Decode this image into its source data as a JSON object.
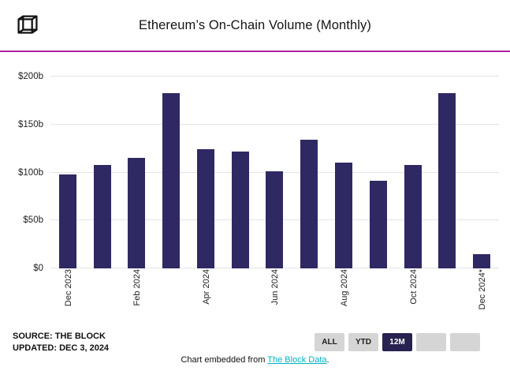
{
  "header": {
    "title": "Ethereum’s On-Chain Volume (Monthly)"
  },
  "chart_data": {
    "type": "bar",
    "title": "Ethereum’s On-Chain Volume (Monthly)",
    "categories": [
      "Dec 2023",
      "Jan 2024",
      "Feb 2024",
      "Mar 2024",
      "Apr 2024",
      "May 2024",
      "Jun 2024",
      "Jul 2024",
      "Aug 2024",
      "Sep 2024",
      "Oct 2024",
      "Nov 2024",
      "Dec 2024*"
    ],
    "values": [
      98,
      108,
      115,
      183,
      124,
      122,
      101,
      134,
      110,
      91,
      108,
      183,
      15
    ],
    "visible_x_tick_labels": [
      "Dec 2023",
      "Feb 2024",
      "Apr 2024",
      "Jun 2024",
      "Aug 2024",
      "Oct 2024",
      "Dec 2024*"
    ],
    "y_ticks": [
      {
        "value": 0,
        "label": "$0"
      },
      {
        "value": 50,
        "label": "$50b"
      },
      {
        "value": 100,
        "label": "$100b"
      },
      {
        "value": 150,
        "label": "$150b"
      },
      {
        "value": 200,
        "label": "$200b"
      }
    ],
    "ylim": [
      0,
      200
    ],
    "unit": "billions USD",
    "grid": true,
    "legend": "none"
  },
  "footer": {
    "source_line1": "SOURCE: THE BLOCK",
    "source_line2": "UPDATED: DEC 3, 2024",
    "range_buttons": [
      {
        "label": "ALL",
        "active": false
      },
      {
        "label": "YTD",
        "active": false
      },
      {
        "label": "12M",
        "active": true
      },
      {
        "label": "",
        "active": false
      },
      {
        "label": "",
        "active": false
      }
    ],
    "embed_prefix": "Chart embedded from ",
    "embed_link": "The Block Data",
    "embed_suffix": "."
  },
  "colors": {
    "bar": "#2E2962",
    "separator": "#B0209B",
    "link": "#00B3C6",
    "button_bg": "#D5D5D5",
    "button_active_bg": "#27224F"
  }
}
